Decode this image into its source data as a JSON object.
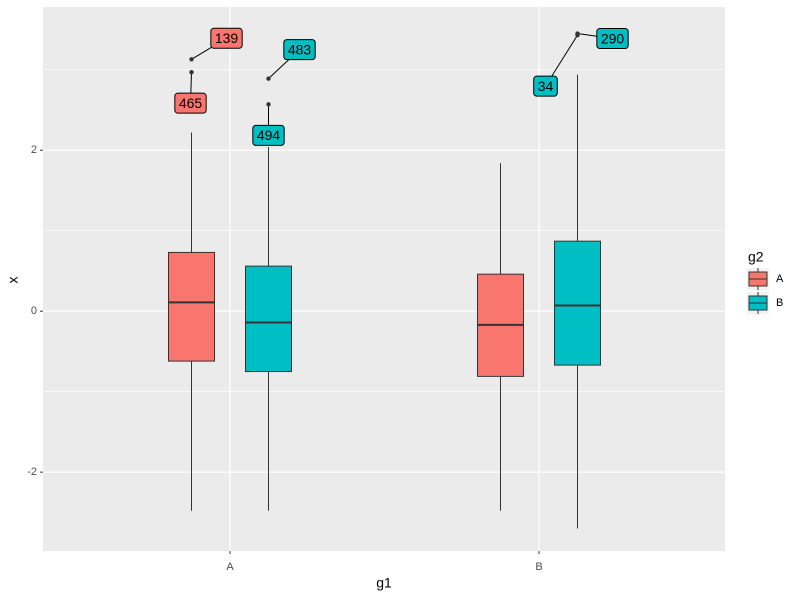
{
  "chart_data": {
    "type": "box",
    "x_label": "g1",
    "y_label": "x",
    "categories": [
      "A",
      "B"
    ],
    "legend_title": "g2",
    "legend_position": "right",
    "ylim": [
      -2.98,
      3.78
    ],
    "yticks": [
      -2,
      0,
      2
    ],
    "minor_yticks": [
      -1,
      1,
      3
    ],
    "grid": true,
    "series": [
      {
        "name": "A",
        "color": "#F8766D",
        "boxes": [
          {
            "whislo": -2.48,
            "q1": -0.62,
            "med": 0.11,
            "q3": 0.73,
            "whishi": 2.22,
            "outliers": [
              2.97,
              3.13
            ],
            "outlier_labels": [
              "465",
              "139"
            ]
          },
          {
            "whislo": -2.48,
            "q1": -0.81,
            "med": -0.17,
            "q3": 0.46,
            "whishi": 1.84,
            "outliers": [],
            "outlier_labels": []
          }
        ]
      },
      {
        "name": "B",
        "color": "#00BFC4",
        "boxes": [
          {
            "whislo": -2.48,
            "q1": -0.75,
            "med": -0.14,
            "q3": 0.56,
            "whishi": 2.04,
            "outliers": [
              2.57,
              2.89
            ],
            "outlier_labels": [
              "494",
              "483"
            ]
          },
          {
            "whislo": -2.7,
            "q1": -0.67,
            "med": 0.07,
            "q3": 0.87,
            "whishi": 2.94,
            "outliers": [
              3.45,
              3.43
            ],
            "outlier_labels": [
              "290",
              "34"
            ]
          }
        ]
      }
    ]
  }
}
